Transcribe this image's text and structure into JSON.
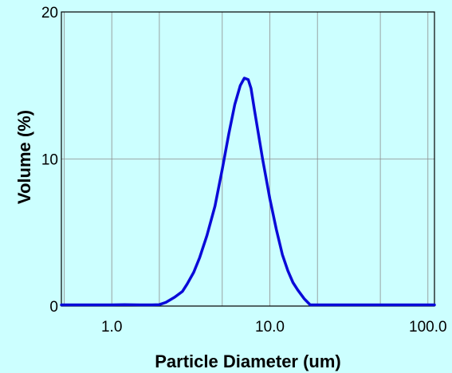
{
  "chart_data": {
    "type": "line",
    "title": "",
    "xlabel": "Particle Diameter (um)",
    "ylabel": "Volume (%)",
    "x_scale": "log",
    "xlim": [
      0.48,
      110
    ],
    "ylim": [
      0,
      20
    ],
    "x_ticks": [
      1.0,
      10.0,
      100.0
    ],
    "x_tick_labels": [
      "1.0",
      "10.0",
      "100.0"
    ],
    "y_ticks": [
      0,
      10,
      20
    ],
    "y_tick_labels": [
      "0",
      "10",
      "20"
    ],
    "grid": true,
    "legend": "none",
    "colors": {
      "line": "#0a0ad8",
      "background": "#ccffff",
      "grid": "#8c8c8c"
    },
    "series": [
      {
        "x": [
          0.48,
          0.8,
          1.0,
          1.2,
          1.5,
          1.8,
          2.0,
          2.2,
          2.5,
          2.8,
          3.0,
          3.3,
          3.6,
          4.0,
          4.5,
          5.0,
          5.5,
          6.0,
          6.5,
          6.9,
          7.3,
          7.6,
          8.0,
          8.5,
          9.0,
          10.0,
          11.0,
          12.0,
          13.0,
          14.0,
          15.0,
          16.5,
          18.0,
          20.0,
          30.0,
          60.0,
          110.0
        ],
        "y": [
          0.08,
          0.08,
          0.08,
          0.1,
          0.08,
          0.08,
          0.1,
          0.25,
          0.6,
          1.0,
          1.5,
          2.3,
          3.3,
          4.8,
          6.8,
          9.3,
          11.7,
          13.7,
          15.0,
          15.5,
          15.4,
          14.8,
          13.3,
          11.6,
          10.0,
          7.3,
          5.2,
          3.5,
          2.4,
          1.6,
          1.1,
          0.5,
          0.08,
          0.08,
          0.08,
          0.08,
          0.08
        ]
      }
    ]
  }
}
